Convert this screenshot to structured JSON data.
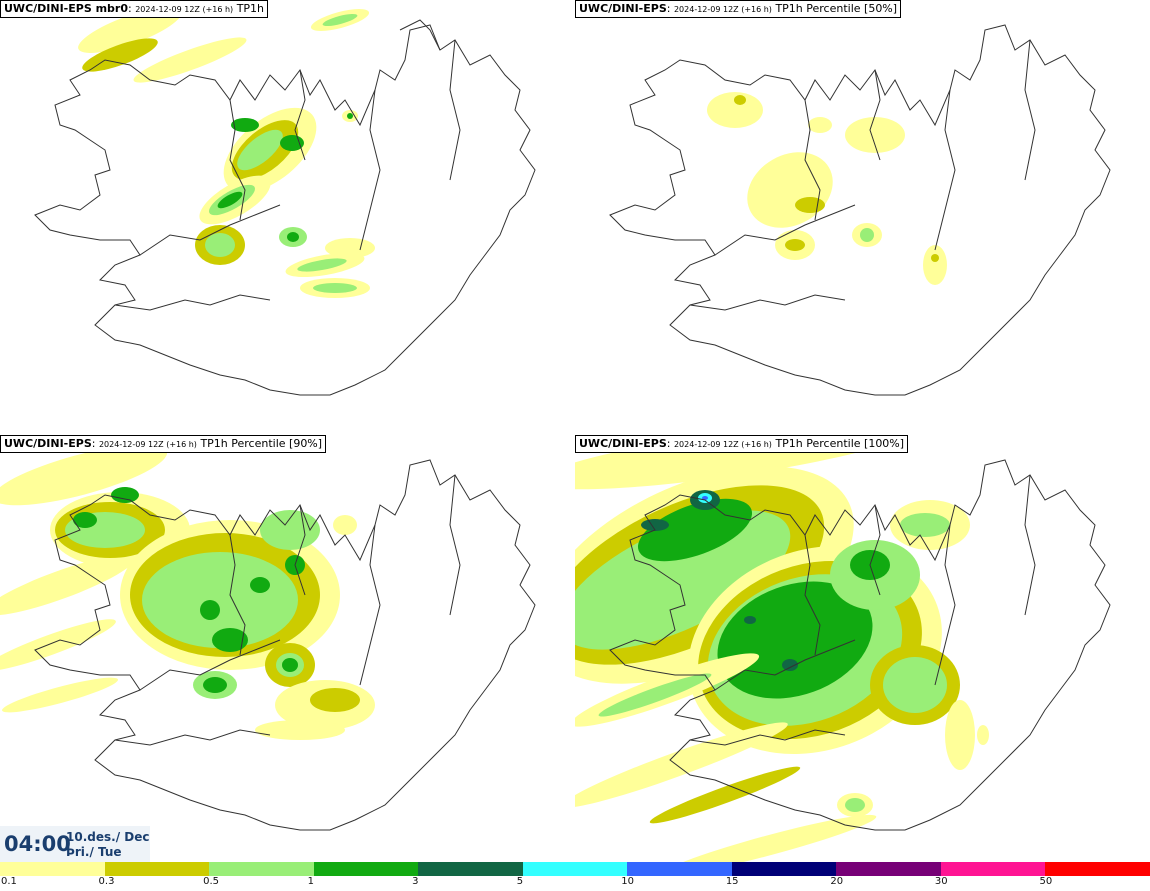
{
  "panels": [
    {
      "model": "UWC/DINI-EPS mbr0",
      "run": "2024-12-09 12Z (+16 h)",
      "field": "TP1h"
    },
    {
      "model": "UWC/DINI-EPS",
      "run": "2024-12-09 12Z (+16 h)",
      "field": "TP1h Percentile [50%]"
    },
    {
      "model": "UWC/DINI-EPS",
      "run": "2024-12-09 12Z (+16 h)",
      "field": "TP1h Percentile [90%]"
    },
    {
      "model": "UWC/DINI-EPS",
      "run": "2024-12-09 12Z (+16 h)",
      "field": "TP1h Percentile [100%]"
    }
  ],
  "time_box": {
    "time": "04:00",
    "date_line1": "10.des./ Dec",
    "date_line2": "Þri./ Tue"
  },
  "legend": {
    "colors": [
      "#ffff99",
      "#cccc00",
      "#99ee77",
      "#11aa11",
      "#116644",
      "#33ffff",
      "#3366ff",
      "#000077",
      "#770077",
      "#ff1493",
      "#ff0000"
    ],
    "ticks": [
      "0.1",
      "0.3",
      "0.5",
      "1",
      "3",
      "5",
      "10",
      "15",
      "20",
      "30",
      "50"
    ]
  }
}
